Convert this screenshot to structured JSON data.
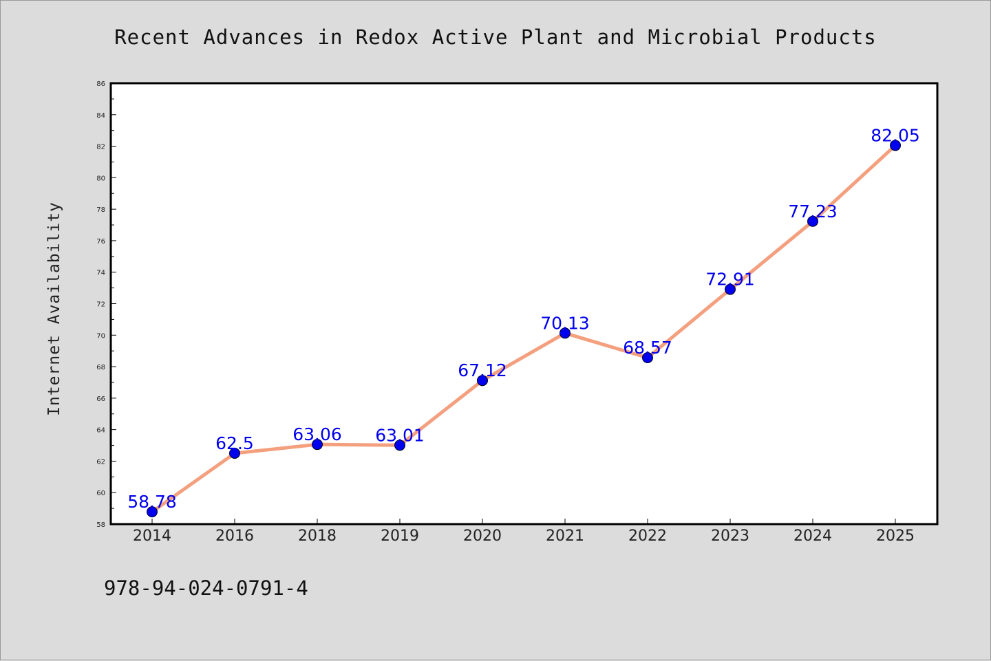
{
  "chart_data": {
    "type": "line",
    "title": "Recent Advances in Redox Active Plant and Microbial Products",
    "xlabel": "",
    "ylabel": "Internet Availability",
    "categories": [
      "2014",
      "2016",
      "2018",
      "2019",
      "2020",
      "2021",
      "2022",
      "2023",
      "2024",
      "2025"
    ],
    "series": [
      {
        "values": [
          58.78,
          62.5,
          63.06,
          63.01,
          67.12,
          70.13,
          68.57,
          72.91,
          77.23,
          82.05
        ],
        "data_labels": [
          "58.78",
          "62.5",
          "63.06",
          "63.01",
          "67.12",
          "70.13",
          "68.57",
          "72.91",
          "77.23",
          "82.05"
        ]
      }
    ],
    "ylim": [
      58,
      86
    ],
    "yticks": [
      "58",
      "60",
      "62",
      "64",
      "66",
      "68",
      "70",
      "72",
      "74",
      "76",
      "78",
      "80",
      "82",
      "84",
      "86"
    ],
    "grid": false,
    "legend": "none",
    "colors": {
      "line": "#f4a07f",
      "marker": "#0000ee",
      "label": "#0000ee",
      "background": "#dcdcdc",
      "plot_background": "#ffffff"
    }
  },
  "footnote": "978-94-024-0791-4"
}
